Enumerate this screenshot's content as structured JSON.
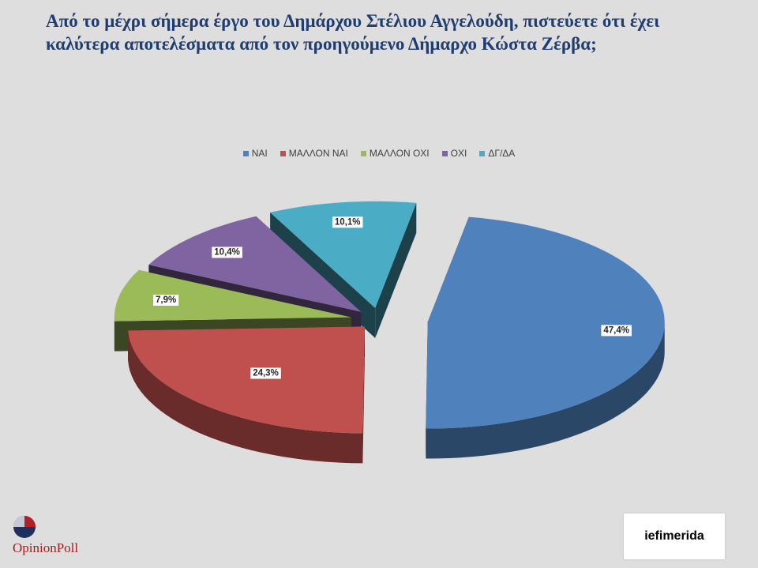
{
  "title": {
    "line1": "Από το μέχρι σήμερα έργο του Δημάρχου Στέλιου Αγγελούδη, πιστεύετε ότι έχει",
    "line2": "καλύτερα αποτελέσματα από τον προηγούμενο Δήμαρχο Κώστα Ζέρβα;"
  },
  "chart_data": {
    "type": "pie",
    "style": "3d-exploded",
    "legend_position": "top",
    "categories": [
      "ΝΑΙ",
      "ΜΑΛΛΟΝ ΝΑΙ",
      "ΜΑΛΛΟΝ ΟΧΙ",
      "ΟΧΙ",
      "ΔΓ/ΔΑ"
    ],
    "values": [
      47.4,
      24.3,
      7.9,
      10.4,
      10.1
    ],
    "labels": [
      "47,4%",
      "24,3%",
      "7,9%",
      "10,4%",
      "10,1%"
    ],
    "colors": [
      "#4f81bd",
      "#c0504d",
      "#9bbb59",
      "#8064a2",
      "#4bacc6"
    ],
    "unit": "%"
  },
  "logos": {
    "left": "OpinionPoll",
    "right": "iefimerida"
  }
}
